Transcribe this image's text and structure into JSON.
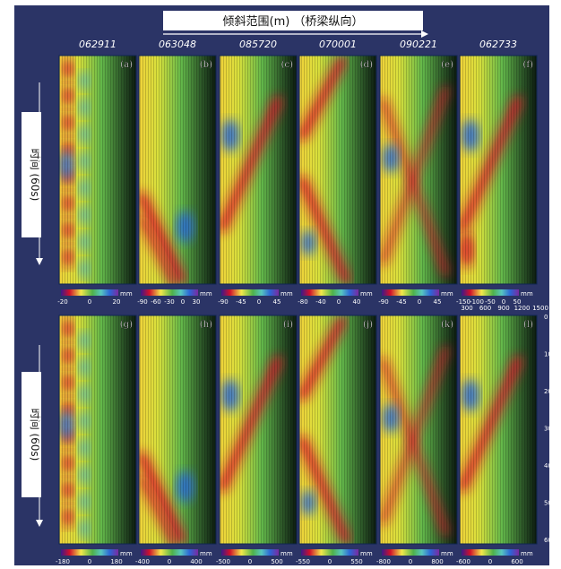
{
  "header": {
    "title": "倾斜范围(m) （桥梁纵向）",
    "time_label": "时间 (60s)"
  },
  "colors": {
    "background": "#2b3466",
    "panel_outer": "#0f2650",
    "header_box": "#ffffff",
    "text_light": "#ffffff",
    "text_dark": "#111111"
  },
  "columns": [
    {
      "id": "062911"
    },
    {
      "id": "063048"
    },
    {
      "id": "085720"
    },
    {
      "id": "070001"
    },
    {
      "id": "090221"
    },
    {
      "id": "062733"
    }
  ],
  "panels_top": [
    {
      "label": "(a)",
      "pattern": "stripes",
      "scale_unit": "mm",
      "scale_ticks": [
        "-20",
        "0",
        "20"
      ]
    },
    {
      "label": "(b)",
      "pattern": "diag_down",
      "scale_unit": "mm",
      "scale_ticks": [
        "-90",
        "-60",
        "-30",
        "0",
        "30"
      ]
    },
    {
      "label": "(c)",
      "pattern": "diag_up",
      "scale_unit": "mm",
      "scale_ticks": [
        "-90",
        "-45",
        "0",
        "45"
      ]
    },
    {
      "label": "(d)",
      "pattern": "zigzag",
      "scale_unit": "mm",
      "scale_ticks": [
        "-80",
        "-40",
        "0",
        "40"
      ]
    },
    {
      "label": "(e)",
      "pattern": "cross",
      "scale_unit": "mm",
      "scale_ticks": [
        "-90",
        "-45",
        "0",
        "45"
      ]
    },
    {
      "label": "(f)",
      "pattern": "diag_up_short",
      "scale_unit": "mm",
      "scale_ticks": [
        "-150",
        "-100",
        "-50",
        "0",
        "50"
      ]
    }
  ],
  "panels_bottom": [
    {
      "label": "(g)",
      "pattern": "stripes",
      "scale_unit": "mm",
      "scale_ticks": [
        "-180",
        "0",
        "180"
      ]
    },
    {
      "label": "(h)",
      "pattern": "diag_down",
      "scale_unit": "mm",
      "scale_ticks": [
        "-400",
        "0",
        "400"
      ]
    },
    {
      "label": "(i)",
      "pattern": "diag_up",
      "scale_unit": "mm",
      "scale_ticks": [
        "-500",
        "0",
        "500"
      ]
    },
    {
      "label": "(j)",
      "pattern": "zigzag",
      "scale_unit": "mm",
      "scale_ticks": [
        "-550",
        "0",
        "550"
      ]
    },
    {
      "label": "(k)",
      "pattern": "cross",
      "scale_unit": "mm",
      "scale_ticks": [
        "-800",
        "0",
        "800"
      ]
    },
    {
      "label": "(l)",
      "pattern": "diag_up",
      "scale_unit": "mm",
      "scale_ticks": [
        "-600",
        "0",
        "600"
      ]
    }
  ],
  "right_axis": {
    "top_ticks": [
      "300",
      "600",
      "900",
      "1200",
      "1500"
    ],
    "side_ticks": [
      "0",
      "10",
      "20",
      "30",
      "40",
      "50",
      "60"
    ]
  }
}
